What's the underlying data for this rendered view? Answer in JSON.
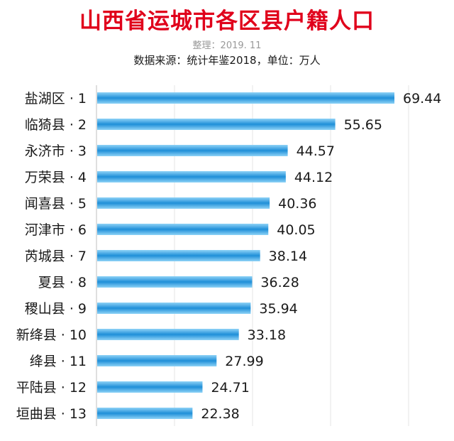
{
  "chart_data": {
    "type": "bar",
    "orientation": "horizontal",
    "title": "山西省运城市各区县户籍人口",
    "subtitle": "整理：2019. 11",
    "source_line": "数据来源：统计年鉴2018，单位：万人",
    "categories": [
      "盐湖区 · 1",
      "临猗县 · 2",
      "永济市 · 3",
      "万荣县 · 4",
      "闻喜县 · 5",
      "河津市 · 6",
      "芮城县 · 7",
      "夏县 · 8",
      "稷山县 · 9",
      "新绛县 · 10",
      "绛县 · 11",
      "平陆县 · 12",
      "垣曲县 · 13"
    ],
    "values": [
      69.44,
      55.65,
      44.57,
      44.12,
      40.36,
      40.05,
      38.14,
      36.28,
      35.94,
      33.18,
      27.99,
      24.71,
      22.38
    ],
    "value_labels": [
      "69.44",
      "55.65",
      "44.57",
      "44.12",
      "40.36",
      "40.05",
      "38.14",
      "36.28",
      "35.94",
      "33.18",
      "27.99",
      "24.71",
      "22.38"
    ],
    "xlim": [
      0,
      69.44
    ],
    "grid": true,
    "legend": "none",
    "colors": {
      "title": "#e0001b",
      "bar_mid": "#1f8fd8",
      "bar_edge": "#8fd3f7",
      "grid": "#e6e6e6",
      "axis": "#bfbfbf",
      "text": "#1a1a1a"
    }
  }
}
